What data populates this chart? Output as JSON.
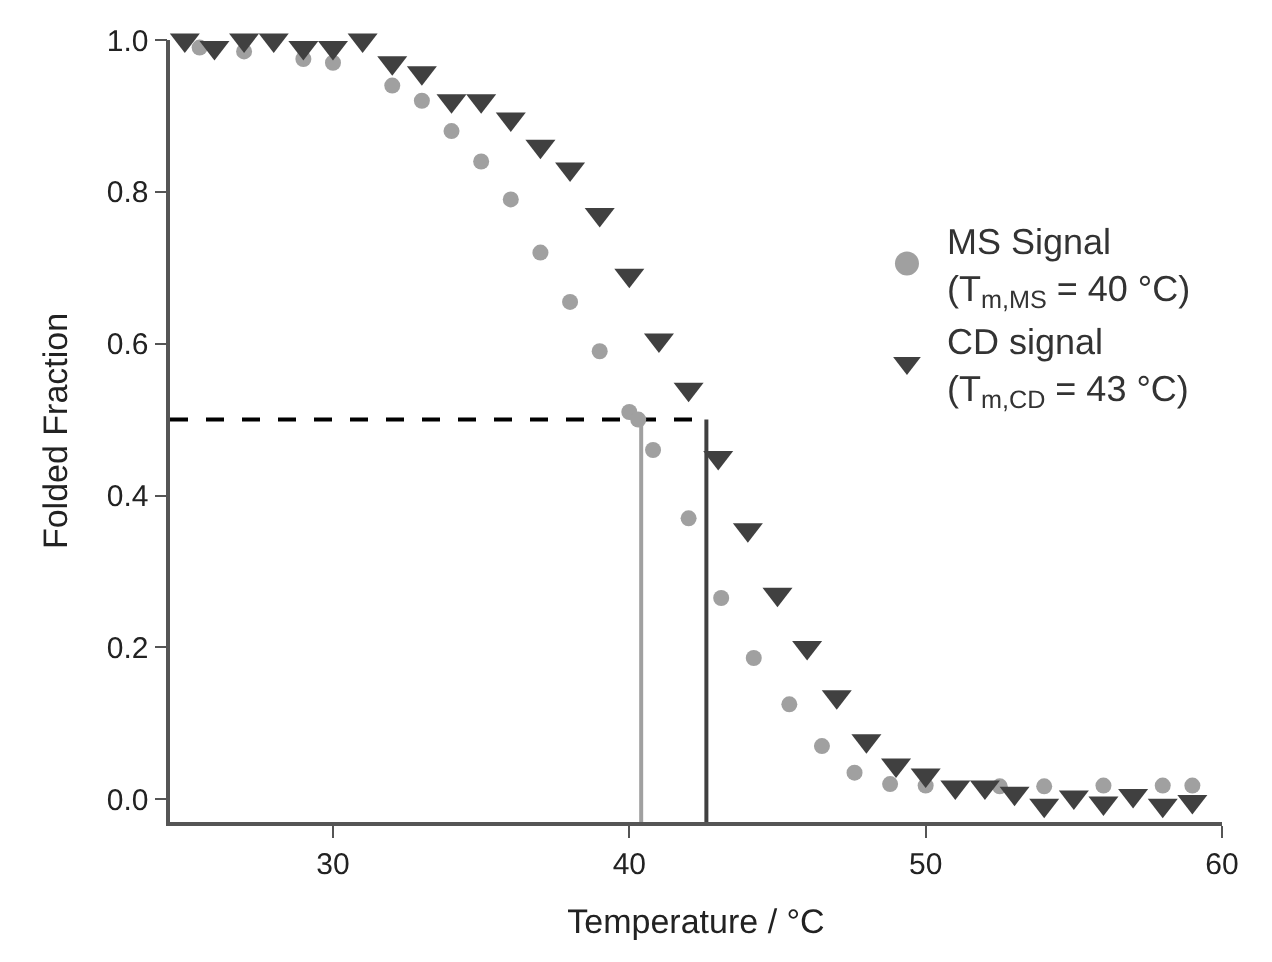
{
  "chart_data": {
    "type": "scatter",
    "xlabel": "Temperature / °C",
    "ylabel": "Folded Fraction",
    "xlim": [
      24.5,
      60
    ],
    "xticks": [
      30,
      40,
      50,
      60
    ],
    "ylim": [
      -0.03,
      1.0
    ],
    "yticks": [
      {
        "value": 0,
        "label": "0.0"
      },
      {
        "value": 0.2,
        "label": "0.2"
      },
      {
        "value": 0.4,
        "label": "0.4"
      },
      {
        "value": 0.6,
        "label": "0.6"
      },
      {
        "value": 0.8,
        "label": "0.8"
      },
      {
        "value": 1,
        "label": "1.0"
      }
    ],
    "grid": false,
    "legend": "right",
    "series": [
      {
        "name": "MS Signal\n(T$_{m,MS}$ = 40 °C)",
        "color": "#a0a0a0",
        "marker": "circle",
        "x": [
          25.5,
          27,
          29,
          30,
          32,
          33,
          34,
          35,
          36,
          37,
          38,
          39,
          40,
          40.3,
          40.8,
          42,
          43.1,
          44.2,
          45.4,
          46.5,
          47.6,
          48.8,
          50,
          52.5,
          54,
          56,
          58,
          59
        ],
        "values": [
          0.99,
          0.985,
          0.975,
          0.97,
          0.94,
          0.92,
          0.88,
          0.84,
          0.79,
          0.72,
          0.655,
          0.59,
          0.51,
          0.5,
          0.46,
          0.37,
          0.265,
          0.186,
          0.125,
          0.07,
          0.035,
          0.02,
          0.018,
          0.017,
          0.017,
          0.018,
          0.018,
          0.018
        ]
      },
      {
        "name": "CD signal\n(T$_{m,CD}$ = 43 °C)",
        "color": "#404040",
        "marker": "triangle",
        "x": [
          25,
          26,
          27,
          28,
          29,
          30,
          31,
          32,
          33,
          34,
          35,
          36,
          37,
          38,
          39,
          40,
          41,
          42,
          43,
          44,
          45,
          46,
          47,
          48,
          49,
          50,
          51,
          52,
          53,
          54,
          55,
          56,
          57,
          58,
          59
        ],
        "values": [
          1.0,
          0.99,
          1.0,
          1.0,
          0.99,
          0.99,
          1.0,
          0.97,
          0.957,
          0.92,
          0.92,
          0.896,
          0.86,
          0.83,
          0.77,
          0.69,
          0.605,
          0.54,
          0.45,
          0.355,
          0.27,
          0.2,
          0.135,
          0.077,
          0.045,
          0.032,
          0.016,
          0.016,
          0.008,
          -0.008,
          0.003,
          -0.005,
          0.005,
          -0.008,
          -0.003
        ]
      }
    ],
    "ref_lines": [
      {
        "axis": "y",
        "value": 0.5,
        "color": "#000000",
        "line_style": "dashed"
      },
      {
        "axis": "x",
        "value": 40.4,
        "color": "#a0a0a0",
        "line_style": "solid"
      },
      {
        "axis": "x",
        "value": 42.6,
        "color": "#404040",
        "line_style": "solid"
      }
    ]
  }
}
